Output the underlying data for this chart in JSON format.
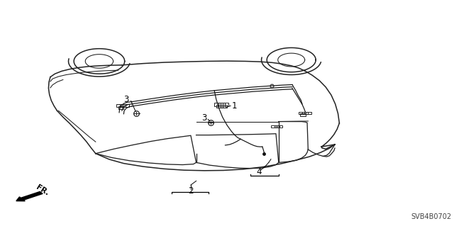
{
  "background_color": "#ffffff",
  "diagram_code": "SVB4B0702",
  "car_color": "#222222",
  "wire_color": "#111111",
  "lw_car": 1.1,
  "lw_wire": 0.85,
  "figsize": [
    6.4,
    3.19
  ],
  "dpi": 100
}
